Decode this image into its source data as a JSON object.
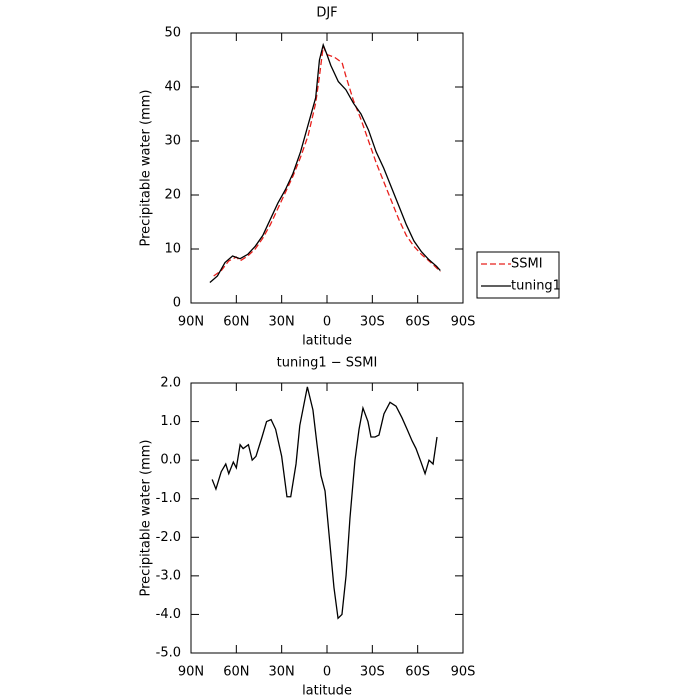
{
  "chart_data": [
    {
      "type": "line",
      "title": "DJF",
      "xlabel": "latitude",
      "ylabel": "Precipitable water (mm)",
      "xlim": [
        90,
        -90
      ],
      "xticks": [
        {
          "value": 90,
          "label": "90N"
        },
        {
          "value": 60,
          "label": "60N"
        },
        {
          "value": 30,
          "label": "30N"
        },
        0,
        {
          "value": -30,
          "label": "30S"
        },
        {
          "value": -60,
          "label": "60S"
        },
        {
          "value": -90,
          "label": "90S"
        }
      ],
      "ylim": [
        0,
        50
      ],
      "yticks": [
        0,
        10,
        20,
        30,
        40,
        50
      ],
      "legend": "right",
      "series": [
        {
          "name": "SSMI",
          "color": "#e8201c",
          "linestyle": "dashed",
          "x": [
            75,
            70,
            65,
            60,
            57.5,
            52.5,
            47.5,
            42.5,
            37.5,
            32.5,
            27.5,
            22.5,
            17.5,
            12.5,
            7.5,
            5,
            2.5,
            0,
            -5,
            -10,
            -12.5,
            -17.5,
            -22.5,
            -27.5,
            -32.5,
            -37.5,
            -42.5,
            -47.5,
            -52.5,
            -57.5,
            -62.5,
            -67.5,
            -72.5,
            -75
          ],
          "values": [
            5,
            6,
            7.8,
            8.5,
            7.8,
            8.7,
            10,
            12,
            14.5,
            17.5,
            20.5,
            23.5,
            27,
            31,
            37,
            42,
            47.5,
            46,
            45.5,
            44.5,
            42,
            37.5,
            34,
            30,
            26,
            22.5,
            19,
            15.5,
            12.5,
            10.5,
            9,
            7.8,
            6.5,
            5.8
          ]
        },
        {
          "name": "tuning1",
          "color": "#000000",
          "linestyle": "solid",
          "x": [
            77.5,
            72.5,
            67.5,
            62.5,
            57.5,
            52.5,
            47.5,
            42.5,
            37.5,
            32.5,
            27.5,
            22.5,
            17.5,
            12.5,
            7.5,
            5,
            2.5,
            0,
            -2.5,
            -7.5,
            -12.5,
            -17.5,
            -22.5,
            -27.5,
            -32.5,
            -37.5,
            -42.5,
            -47.5,
            -52.5,
            -57.5,
            -62.5,
            -67.5,
            -72.5,
            -75
          ],
          "values": [
            3.8,
            5,
            7.5,
            8.7,
            8.2,
            9,
            10.5,
            12.5,
            15.5,
            18.5,
            21,
            24,
            28,
            33,
            38,
            45,
            47.8,
            46,
            44,
            41,
            39.5,
            37,
            35,
            32,
            28,
            25,
            21.5,
            18,
            14.5,
            11.5,
            9.5,
            8,
            6.8,
            6
          ]
        }
      ]
    },
    {
      "type": "line",
      "title": "tuning1 − SSMI",
      "xlabel": "latitude",
      "ylabel": "Precipitable water (mm)",
      "xlim": [
        90,
        -90
      ],
      "xticks": [
        {
          "value": 90,
          "label": "90N"
        },
        {
          "value": 60,
          "label": "60N"
        },
        {
          "value": 30,
          "label": "30N"
        },
        0,
        {
          "value": -30,
          "label": "30S"
        },
        {
          "value": -60,
          "label": "60S"
        },
        {
          "value": -90,
          "label": "90S"
        }
      ],
      "ylim": [
        -5,
        2
      ],
      "yticks": [
        {
          "value": 2,
          "label": "2.0"
        },
        {
          "value": 1,
          "label": "1.0"
        },
        {
          "value": 0,
          "label": "0.0"
        },
        {
          "value": -1,
          "label": "-1.0"
        },
        {
          "value": -2,
          "label": "-2.0"
        },
        {
          "value": -3,
          "label": "-3.0"
        },
        {
          "value": -4,
          "label": "-4.0"
        },
        {
          "value": -5,
          "label": "-5.0"
        }
      ],
      "series": [
        {
          "color": "#000000",
          "linestyle": "solid",
          "x": [
            76,
            73.5,
            70,
            67,
            65,
            62,
            60,
            57.5,
            55.5,
            52,
            49.5,
            47,
            43,
            40,
            37,
            34,
            30,
            26.5,
            24,
            20.5,
            18,
            13,
            9.3,
            6.6,
            4,
            1.3,
            -1.3,
            -4.6,
            -7.3,
            -9.9,
            -12.6,
            -15.2,
            -18.5,
            -21.2,
            -23.8,
            -27.1,
            -29.1,
            -31.8,
            -34.4,
            -37.7,
            -41.7,
            -45.7,
            -49.6,
            -53,
            -56.3,
            -58.9,
            -62.2,
            -64.9,
            -67.5,
            -70.2,
            -72.8
          ],
          "values": [
            -0.5,
            -0.75,
            -0.3,
            -0.1,
            -0.35,
            -0.05,
            -0.2,
            0.4,
            0.3,
            0.4,
            0,
            0.1,
            0.6,
            1,
            1.05,
            0.8,
            0.1,
            -0.95,
            -0.95,
            -0.1,
            0.9,
            1.9,
            1.3,
            0.4,
            -0.4,
            -0.8,
            -1.9,
            -3.3,
            -4.1,
            -4,
            -3,
            -1.5,
            0,
            0.8,
            1.35,
            1,
            0.6,
            0.6,
            0.65,
            1.2,
            1.5,
            1.4,
            1.1,
            0.8,
            0.5,
            0.3,
            -0.05,
            -0.35,
            0,
            -0.1,
            0.6
          ]
        }
      ]
    }
  ]
}
